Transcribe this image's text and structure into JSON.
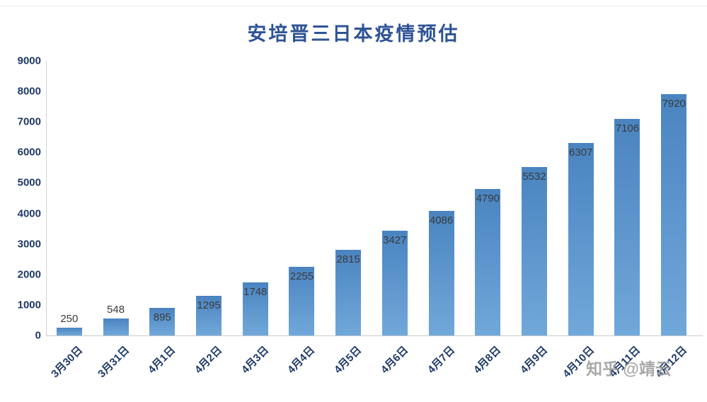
{
  "title": "安培晋三日本疫情预估",
  "watermark": "知乎 @靖云",
  "colors": {
    "bar_gradient_top": "#4a84c0",
    "bar_gradient_bottom": "#71a8da",
    "title_color": "#2e5395",
    "axis_tick_color": "#1e3a66",
    "data_label_color": "#3a3a3a"
  },
  "chart_data": {
    "type": "bar",
    "title": "安培晋三日本疫情预估",
    "categories": [
      "3月30日",
      "3月31日",
      "4月1日",
      "4月2日",
      "4月3日",
      "4月4日",
      "4月5日",
      "4月6日",
      "4月7日",
      "4月8日",
      "4月9日",
      "4月10日",
      "4月11日",
      "4月12日"
    ],
    "values": [
      250,
      548,
      895,
      1295,
      1748,
      2255,
      2815,
      3427,
      4086,
      4790,
      5532,
      6307,
      7106,
      7920
    ],
    "xlabel": "",
    "ylabel": "",
    "ylim": [
      0,
      9000
    ],
    "ytick_step": 1000,
    "grid": false,
    "legend_position": "none",
    "data_labels": "inside-end"
  }
}
